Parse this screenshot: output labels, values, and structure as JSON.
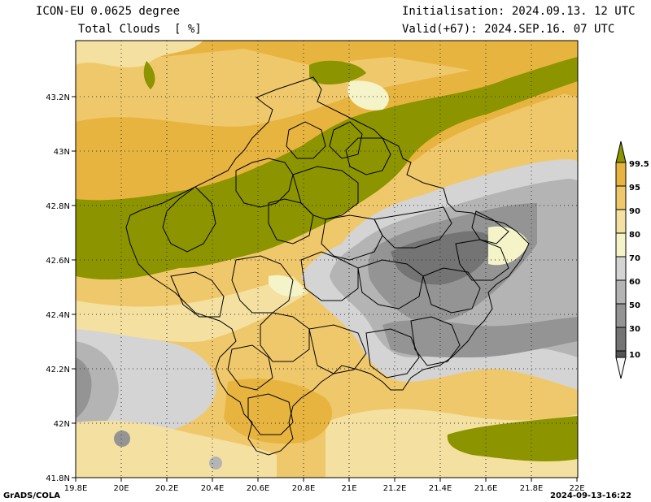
{
  "header": {
    "model": "ICON-EU 0.0625 degree",
    "field": "Total Clouds  [ %]",
    "init": "Initialisation: 2024.09.13. 12 UTC",
    "valid": "Valid(+67): 2024.SEP.16. 07 UTC"
  },
  "footer": {
    "left": "GrADS/COLA",
    "right": "2024-09-13-16:22"
  },
  "map": {
    "lon_range": [
      19.8,
      22.0
    ],
    "lat_range": [
      41.8,
      43.4
    ],
    "lon_ticks": [
      "19.8E",
      "20E",
      "20.2E",
      "20.4E",
      "20.6E",
      "20.8E",
      "21E",
      "21.2E",
      "21.4E",
      "21.6E",
      "21.8E",
      "22E"
    ],
    "lat_ticks": [
      "41.8N",
      "42N",
      "42.2N",
      "42.4N",
      "42.6N",
      "42.8N",
      "43N",
      "43.2N"
    ]
  },
  "colorbar": {
    "levels": [
      "99.5",
      "95",
      "90",
      "80",
      "70",
      "60",
      "50",
      "30",
      "10"
    ],
    "colors": [
      "#8c9400",
      "#e8b440",
      "#f0c86c",
      "#f4e0a0",
      "#f4f4c8",
      "#d4d4d4",
      "#b4b4b4",
      "#949494",
      "#747474",
      "#545454",
      "#f8f8f8"
    ]
  }
}
